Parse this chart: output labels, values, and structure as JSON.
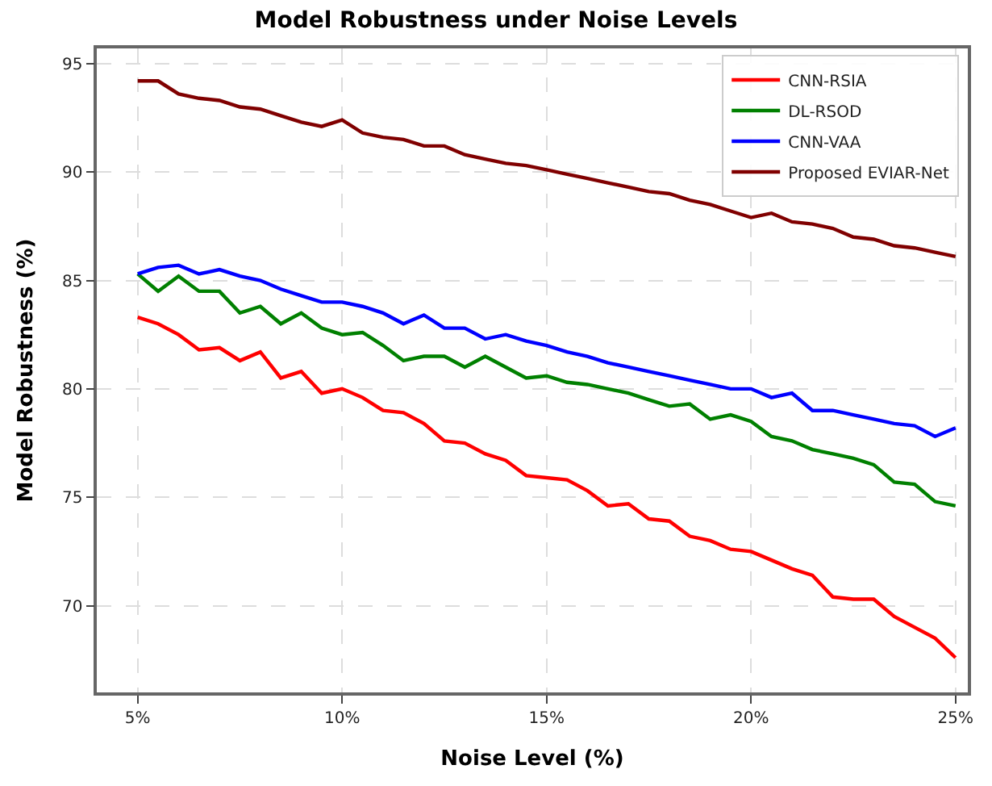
{
  "chart_data": {
    "type": "line",
    "title": "Model Robustness under Noise Levels",
    "xlabel": "Noise Level (%)",
    "ylabel": "Model Robustness (%)",
    "x": [
      5,
      5.5,
      6,
      6.5,
      7,
      7.5,
      8,
      8.5,
      9,
      9.5,
      10,
      10.5,
      11,
      11.5,
      12,
      12.5,
      13,
      13.5,
      14,
      14.5,
      15,
      15.5,
      16,
      16.5,
      17,
      17.5,
      18,
      18.5,
      19,
      19.5,
      20,
      20.5,
      21,
      21.5,
      22,
      22.5,
      23,
      23.5,
      24,
      24.5,
      25
    ],
    "series": [
      {
        "name": "CNN-RSIA",
        "color": "#ff0000",
        "values": [
          83.3,
          83.0,
          82.5,
          81.8,
          81.9,
          81.3,
          81.7,
          80.5,
          80.8,
          79.8,
          80.0,
          79.6,
          79.0,
          78.9,
          78.4,
          77.6,
          77.5,
          77.0,
          76.7,
          76.0,
          75.9,
          75.8,
          75.3,
          74.6,
          74.7,
          74.0,
          73.9,
          73.2,
          73.0,
          72.6,
          72.5,
          72.1,
          71.7,
          71.4,
          70.4,
          70.3,
          70.3,
          69.5,
          69.0,
          68.5,
          67.6
        ]
      },
      {
        "name": "DL-RSOD",
        "color": "#008000",
        "values": [
          85.3,
          84.5,
          85.2,
          84.5,
          84.5,
          83.5,
          83.8,
          83.0,
          83.5,
          82.8,
          82.5,
          82.6,
          82.0,
          81.3,
          81.5,
          81.5,
          81.0,
          81.5,
          81.0,
          80.5,
          80.6,
          80.3,
          80.2,
          80.0,
          79.8,
          79.5,
          79.2,
          79.3,
          78.6,
          78.8,
          78.5,
          77.8,
          77.6,
          77.2,
          77.0,
          76.8,
          76.5,
          75.7,
          75.6,
          74.8,
          74.6
        ]
      },
      {
        "name": "CNN-VAA",
        "color": "#0000ff",
        "values": [
          85.3,
          85.6,
          85.7,
          85.3,
          85.5,
          85.2,
          85.0,
          84.6,
          84.3,
          84.0,
          84.0,
          83.8,
          83.5,
          83.0,
          83.4,
          82.8,
          82.8,
          82.3,
          82.5,
          82.2,
          82.0,
          81.7,
          81.5,
          81.2,
          81.0,
          80.8,
          80.6,
          80.4,
          80.2,
          80.0,
          80.0,
          79.6,
          79.8,
          79.0,
          79.0,
          78.8,
          78.6,
          78.4,
          78.3,
          77.8,
          78.2
        ]
      },
      {
        "name": "Proposed EVIAR-Net",
        "color": "#800000",
        "values": [
          94.2,
          94.2,
          93.6,
          93.4,
          93.3,
          93.0,
          92.9,
          92.6,
          92.3,
          92.1,
          92.4,
          91.8,
          91.6,
          91.5,
          91.2,
          91.2,
          90.8,
          90.6,
          90.4,
          90.3,
          90.1,
          89.9,
          89.7,
          89.5,
          89.3,
          89.1,
          89.0,
          88.7,
          88.5,
          88.2,
          87.9,
          88.1,
          87.7,
          87.6,
          87.4,
          87.0,
          86.9,
          86.6,
          86.5,
          86.3,
          86.1
        ]
      }
    ],
    "xlim": [
      4,
      25.3
    ],
    "xticks": [
      {
        "value": 5,
        "label": "5%"
      },
      {
        "value": 10,
        "label": "10%"
      },
      {
        "value": 15,
        "label": "15%"
      },
      {
        "value": 20,
        "label": "20%"
      },
      {
        "value": 25,
        "label": "25%"
      }
    ],
    "ylim": [
      66,
      95.7
    ],
    "yticks": [
      70,
      75,
      80,
      85,
      90,
      95
    ],
    "grid": true,
    "legend": "top right",
    "line_style": "solid",
    "marker": "none"
  }
}
